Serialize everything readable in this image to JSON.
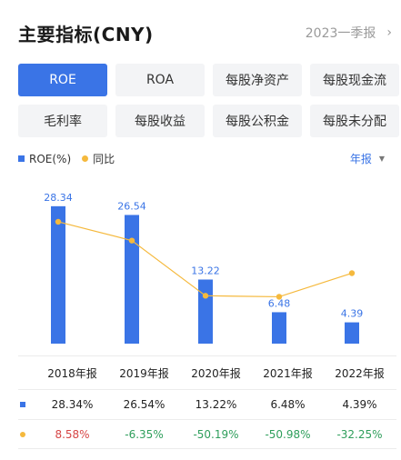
{
  "header": {
    "title": "主要指标(CNY)",
    "period": "2023一季报",
    "chevron": "chevron-right-icon"
  },
  "tabs": [
    "ROE",
    "ROA",
    "每股净资产",
    "每股现金流",
    "毛利率",
    "每股收益",
    "每股公积金",
    "每股未分配"
  ],
  "active_tab": 0,
  "legend": {
    "bar": "ROE(%)",
    "line": "同比",
    "freq": "年报"
  },
  "colors": {
    "accent": "#3a74e6",
    "line": "#f5b93d",
    "positive": "#d64545",
    "negative": "#2e9e5b"
  },
  "chart_data": {
    "type": "bar",
    "categories": [
      "2018年报",
      "2019年报",
      "2020年报",
      "2021年报",
      "2022年报"
    ],
    "series": [
      {
        "name": "ROE(%)",
        "type": "bar",
        "values": [
          28.34,
          26.54,
          13.22,
          6.48,
          4.39
        ]
      },
      {
        "name": "同比",
        "type": "line",
        "values": [
          8.58,
          -6.35,
          -50.19,
          -50.98,
          -32.25
        ]
      }
    ],
    "bar_labels": [
      "28.34",
      "26.54",
      "13.22",
      "6.48",
      "4.39"
    ]
  },
  "table": {
    "headers": [
      "2018年报",
      "2019年报",
      "2020年报",
      "2021年报",
      "2022年报"
    ],
    "roe": [
      "28.34%",
      "26.54%",
      "13.22%",
      "6.48%",
      "4.39%"
    ],
    "yoy": [
      "8.58%",
      "-6.35%",
      "-50.19%",
      "-50.98%",
      "-32.25%"
    ]
  }
}
